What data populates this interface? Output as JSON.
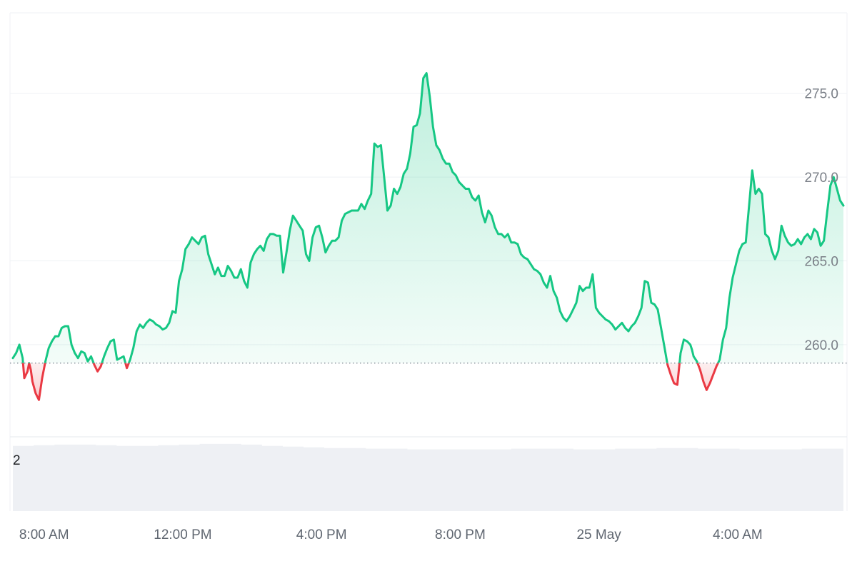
{
  "chart_data": {
    "type": "area",
    "baseline": 258.9,
    "ylim": [
      254.5,
      279.8
    ],
    "yticks": [
      {
        "value": 260,
        "label": "260.0"
      },
      {
        "value": 265,
        "label": "265.0"
      },
      {
        "value": 270,
        "label": "270.0"
      },
      {
        "value": 275,
        "label": "275.0"
      }
    ],
    "xticks": [
      {
        "label": "8:00 AM",
        "hour": 8.0
      },
      {
        "label": "12:00 PM",
        "hour": 12.0
      },
      {
        "label": "4:00 PM",
        "hour": 16.0
      },
      {
        "label": "8:00 PM",
        "hour": 20.0
      },
      {
        "label": "25 May",
        "hour": 24.0
      },
      {
        "label": "4:00 AM",
        "hour": 28.0
      }
    ],
    "x_range_hours": [
      7.1,
      31.05
    ],
    "series": [
      {
        "values": [
          [
            7.1,
            259.2
          ],
          [
            7.2,
            259.5
          ],
          [
            7.3,
            260.0
          ],
          [
            7.4,
            259.2
          ],
          [
            7.45,
            258.0
          ],
          [
            7.55,
            258.4
          ],
          [
            7.6,
            258.9
          ],
          [
            7.65,
            258.5
          ],
          [
            7.7,
            257.8
          ],
          [
            7.8,
            257.1
          ],
          [
            7.9,
            256.7
          ],
          [
            8.0,
            258.0
          ],
          [
            8.1,
            259.0
          ],
          [
            8.2,
            259.8
          ],
          [
            8.3,
            260.2
          ],
          [
            8.4,
            260.5
          ],
          [
            8.5,
            260.5
          ],
          [
            8.6,
            261.0
          ],
          [
            8.7,
            261.1
          ],
          [
            8.8,
            261.1
          ],
          [
            8.9,
            260.0
          ],
          [
            9.0,
            259.5
          ],
          [
            9.1,
            259.2
          ],
          [
            9.2,
            259.6
          ],
          [
            9.3,
            259.5
          ],
          [
            9.4,
            259.0
          ],
          [
            9.5,
            259.3
          ],
          [
            9.6,
            258.8
          ],
          [
            9.7,
            258.4
          ],
          [
            9.8,
            258.7
          ],
          [
            9.9,
            259.3
          ],
          [
            10.0,
            259.8
          ],
          [
            10.1,
            260.2
          ],
          [
            10.2,
            260.3
          ],
          [
            10.3,
            259.1
          ],
          [
            10.4,
            259.2
          ],
          [
            10.5,
            259.3
          ],
          [
            10.6,
            258.6
          ],
          [
            10.7,
            259.1
          ],
          [
            10.8,
            259.8
          ],
          [
            10.9,
            260.8
          ],
          [
            11.0,
            261.2
          ],
          [
            11.1,
            261.0
          ],
          [
            11.2,
            261.3
          ],
          [
            11.3,
            261.5
          ],
          [
            11.4,
            261.4
          ],
          [
            11.5,
            261.2
          ],
          [
            11.6,
            261.1
          ],
          [
            11.7,
            260.9
          ],
          [
            11.8,
            261.0
          ],
          [
            11.9,
            261.3
          ],
          [
            12.0,
            262.0
          ],
          [
            12.1,
            261.9
          ],
          [
            12.2,
            263.8
          ],
          [
            12.3,
            264.5
          ],
          [
            12.4,
            265.7
          ],
          [
            12.5,
            266.0
          ],
          [
            12.6,
            266.4
          ],
          [
            12.7,
            266.2
          ],
          [
            12.8,
            266.0
          ],
          [
            12.9,
            266.4
          ],
          [
            13.0,
            266.5
          ],
          [
            13.1,
            265.4
          ],
          [
            13.2,
            264.8
          ],
          [
            13.3,
            264.2
          ],
          [
            13.4,
            264.6
          ],
          [
            13.5,
            264.1
          ],
          [
            13.6,
            264.1
          ],
          [
            13.7,
            264.7
          ],
          [
            13.8,
            264.4
          ],
          [
            13.9,
            264.0
          ],
          [
            14.0,
            264.0
          ],
          [
            14.1,
            264.5
          ],
          [
            14.2,
            263.8
          ],
          [
            14.3,
            263.4
          ],
          [
            14.4,
            264.9
          ],
          [
            14.5,
            265.4
          ],
          [
            14.6,
            265.7
          ],
          [
            14.7,
            265.9
          ],
          [
            14.8,
            265.6
          ],
          [
            14.9,
            266.3
          ],
          [
            15.0,
            266.6
          ],
          [
            15.1,
            266.6
          ],
          [
            15.2,
            266.5
          ],
          [
            15.3,
            266.5
          ],
          [
            15.4,
            264.3
          ],
          [
            15.5,
            265.5
          ],
          [
            15.6,
            266.8
          ],
          [
            15.7,
            267.7
          ],
          [
            15.8,
            267.4
          ],
          [
            15.9,
            267.1
          ],
          [
            16.0,
            266.8
          ],
          [
            16.1,
            265.4
          ],
          [
            16.2,
            265.0
          ],
          [
            16.3,
            266.4
          ],
          [
            16.4,
            267.0
          ],
          [
            16.5,
            267.1
          ],
          [
            16.6,
            266.4
          ],
          [
            16.7,
            265.5
          ],
          [
            16.8,
            265.9
          ],
          [
            16.9,
            266.2
          ],
          [
            17.0,
            266.2
          ],
          [
            17.1,
            266.4
          ],
          [
            17.2,
            267.4
          ],
          [
            17.3,
            267.8
          ],
          [
            17.4,
            267.9
          ],
          [
            17.5,
            268.0
          ],
          [
            17.6,
            268.0
          ],
          [
            17.7,
            268.0
          ],
          [
            17.8,
            268.4
          ],
          [
            17.9,
            268.1
          ],
          [
            18.0,
            268.6
          ],
          [
            18.1,
            269.0
          ],
          [
            18.2,
            272.0
          ],
          [
            18.3,
            271.8
          ],
          [
            18.4,
            271.9
          ],
          [
            18.5,
            270.0
          ],
          [
            18.6,
            268.0
          ],
          [
            18.7,
            268.3
          ],
          [
            18.8,
            269.3
          ],
          [
            18.9,
            269.0
          ],
          [
            19.0,
            269.4
          ],
          [
            19.1,
            270.2
          ],
          [
            19.2,
            270.5
          ],
          [
            19.3,
            271.4
          ],
          [
            19.4,
            273.0
          ],
          [
            19.5,
            273.1
          ],
          [
            19.6,
            273.8
          ],
          [
            19.7,
            275.9
          ],
          [
            19.8,
            276.2
          ],
          [
            19.9,
            274.8
          ],
          [
            20.0,
            273.0
          ],
          [
            20.1,
            271.9
          ],
          [
            20.2,
            271.6
          ],
          [
            20.3,
            271.1
          ],
          [
            20.4,
            270.8
          ],
          [
            20.5,
            270.8
          ],
          [
            20.6,
            270.3
          ],
          [
            20.7,
            270.1
          ],
          [
            20.8,
            269.7
          ],
          [
            20.9,
            269.5
          ],
          [
            21.0,
            269.3
          ],
          [
            21.1,
            269.3
          ],
          [
            21.2,
            268.8
          ],
          [
            21.3,
            268.6
          ],
          [
            21.4,
            268.9
          ],
          [
            21.5,
            267.9
          ],
          [
            21.6,
            267.3
          ],
          [
            21.7,
            268.0
          ],
          [
            21.8,
            267.7
          ],
          [
            21.9,
            267.0
          ],
          [
            22.0,
            266.6
          ],
          [
            22.1,
            266.6
          ],
          [
            22.2,
            266.4
          ],
          [
            22.3,
            266.6
          ],
          [
            22.4,
            266.1
          ],
          [
            22.5,
            266.1
          ],
          [
            22.6,
            266.0
          ],
          [
            22.7,
            265.4
          ],
          [
            22.8,
            265.2
          ],
          [
            22.9,
            265.1
          ],
          [
            23.0,
            264.8
          ],
          [
            23.1,
            264.5
          ],
          [
            23.2,
            264.4
          ],
          [
            23.3,
            264.2
          ],
          [
            23.4,
            263.7
          ],
          [
            23.5,
            263.4
          ],
          [
            23.6,
            264.1
          ],
          [
            23.7,
            263.2
          ],
          [
            23.8,
            262.8
          ],
          [
            23.9,
            262.0
          ],
          [
            24.0,
            261.6
          ],
          [
            24.1,
            261.4
          ],
          [
            24.2,
            261.7
          ],
          [
            24.3,
            262.1
          ],
          [
            24.4,
            262.5
          ],
          [
            24.5,
            263.5
          ],
          [
            24.6,
            263.2
          ],
          [
            24.7,
            263.4
          ],
          [
            24.8,
            263.4
          ],
          [
            24.9,
            264.2
          ],
          [
            25.0,
            262.2
          ],
          [
            25.1,
            261.9
          ],
          [
            25.2,
            261.7
          ],
          [
            25.3,
            261.5
          ],
          [
            25.4,
            261.4
          ],
          [
            25.5,
            261.2
          ],
          [
            25.6,
            260.9
          ],
          [
            25.7,
            261.1
          ],
          [
            25.8,
            261.3
          ],
          [
            25.9,
            261.0
          ],
          [
            26.0,
            260.8
          ],
          [
            26.1,
            261.1
          ],
          [
            26.2,
            261.3
          ],
          [
            26.3,
            261.7
          ],
          [
            26.4,
            262.2
          ],
          [
            26.5,
            263.8
          ],
          [
            26.6,
            263.7
          ],
          [
            26.7,
            262.5
          ],
          [
            26.8,
            262.4
          ],
          [
            26.9,
            262.1
          ],
          [
            27.0,
            261.0
          ],
          [
            27.1,
            259.9
          ],
          [
            27.2,
            258.8
          ],
          [
            27.3,
            258.2
          ],
          [
            27.4,
            257.7
          ],
          [
            27.5,
            257.6
          ],
          [
            27.6,
            259.5
          ],
          [
            27.7,
            260.3
          ],
          [
            27.8,
            260.2
          ],
          [
            27.9,
            260.0
          ],
          [
            27.95,
            259.7
          ],
          [
            28.0,
            259.3
          ],
          [
            28.1,
            259.0
          ],
          [
            28.2,
            258.5
          ],
          [
            28.3,
            257.8
          ],
          [
            28.4,
            257.3
          ],
          [
            28.5,
            257.7
          ],
          [
            28.6,
            258.2
          ],
          [
            28.7,
            258.7
          ],
          [
            28.8,
            259.1
          ],
          [
            28.9,
            260.3
          ],
          [
            29.0,
            261.0
          ],
          [
            29.1,
            262.8
          ],
          [
            29.2,
            264.0
          ],
          [
            29.3,
            264.8
          ],
          [
            29.4,
            265.6
          ],
          [
            29.5,
            266.0
          ],
          [
            29.6,
            266.1
          ],
          [
            29.7,
            268.2
          ],
          [
            29.8,
            270.4
          ],
          [
            29.9,
            269.0
          ],
          [
            30.0,
            269.3
          ],
          [
            30.1,
            269.0
          ],
          [
            30.2,
            266.6
          ],
          [
            30.3,
            266.4
          ],
          [
            30.4,
            265.6
          ],
          [
            30.5,
            265.1
          ],
          [
            30.6,
            265.6
          ],
          [
            30.7,
            267.1
          ],
          [
            30.8,
            266.5
          ],
          [
            30.9,
            266.1
          ],
          [
            31.0,
            265.9
          ],
          [
            31.1,
            266.0
          ],
          [
            31.2,
            266.3
          ],
          [
            31.3,
            266.0
          ],
          [
            31.4,
            266.4
          ],
          [
            31.5,
            266.6
          ],
          [
            31.6,
            266.3
          ],
          [
            31.7,
            266.9
          ],
          [
            31.8,
            266.7
          ],
          [
            31.9,
            265.9
          ],
          [
            32.0,
            266.2
          ],
          [
            32.1,
            267.9
          ],
          [
            32.2,
            269.5
          ],
          [
            32.3,
            270.0
          ],
          [
            32.4,
            269.3
          ],
          [
            32.5,
            268.6
          ],
          [
            32.6,
            268.3
          ]
        ]
      }
    ],
    "volume": {
      "label": "2",
      "values": [
        0.95,
        0.96,
        0.97,
        0.97,
        0.96,
        0.95,
        0.95,
        0.96,
        0.97,
        0.98,
        0.98,
        0.97,
        0.95,
        0.94,
        0.93,
        0.92,
        0.92,
        0.91,
        0.91,
        0.9,
        0.9,
        0.9,
        0.9,
        0.9,
        0.91,
        0.91,
        0.91,
        0.9,
        0.9,
        0.91,
        0.91,
        0.92,
        0.92,
        0.91,
        0.91,
        0.9,
        0.9,
        0.9,
        0.91,
        0.91
      ]
    },
    "colors": {
      "up_line": "#16c784",
      "down_line": "#ea3943",
      "up_fill": "#16c784",
      "down_fill": "#ea3943",
      "baseline": "#7f8a94",
      "grid": "#eff2f5",
      "volume": "#eef0f4"
    },
    "grid": true
  }
}
